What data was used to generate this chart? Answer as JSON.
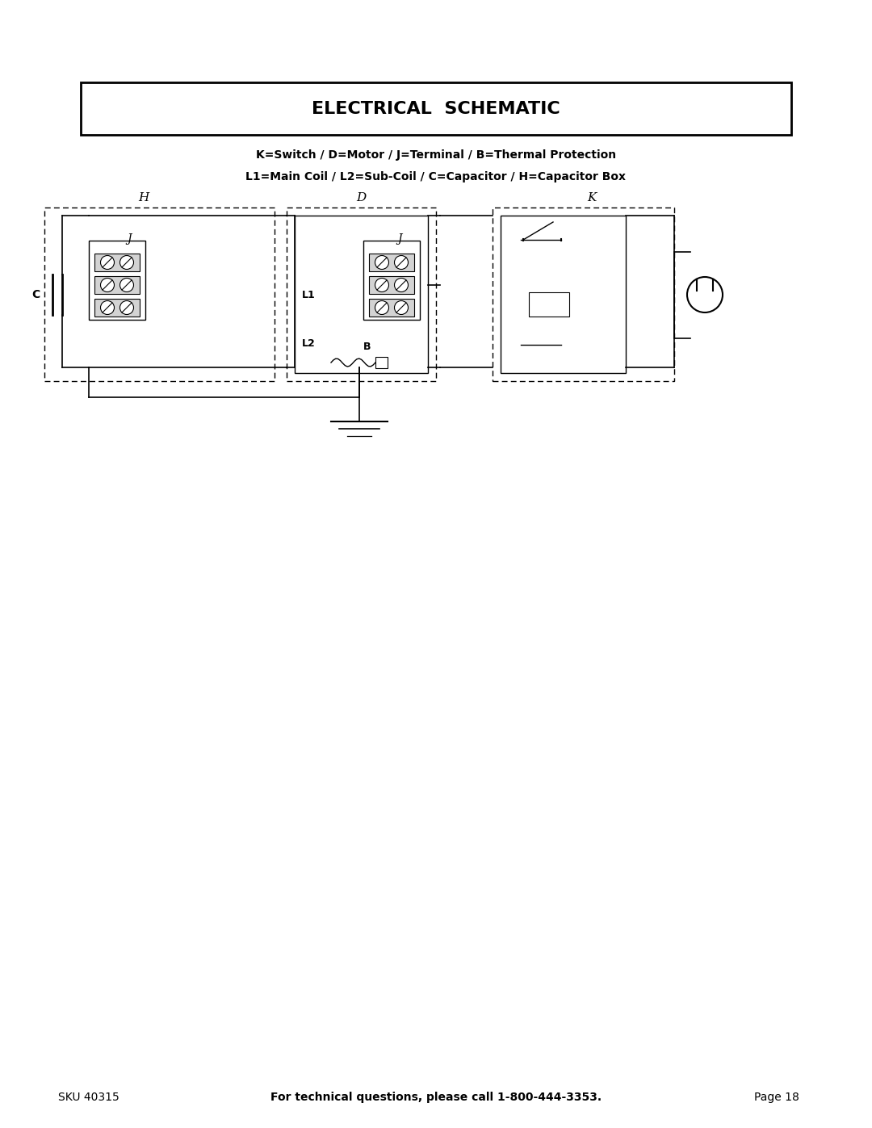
{
  "title": "ELECTRICAL  SCHEMATIC",
  "subtitle_line1": "K=Switch / D=Motor / J=Terminal / B=Thermal Protection",
  "subtitle_line2": "L1=Main Coil / L2=Sub-Coil / C=Capacitor / H=Capacitor Box",
  "footer_left": "SKU 40315",
  "footer_center": "For technical questions, please call 1-800-444-3353.",
  "footer_right": "Page 18",
  "bg_color": "#ffffff",
  "text_color": "#000000",
  "title_fontsize": 16,
  "subtitle_fontsize": 10,
  "footer_fontsize": 10
}
